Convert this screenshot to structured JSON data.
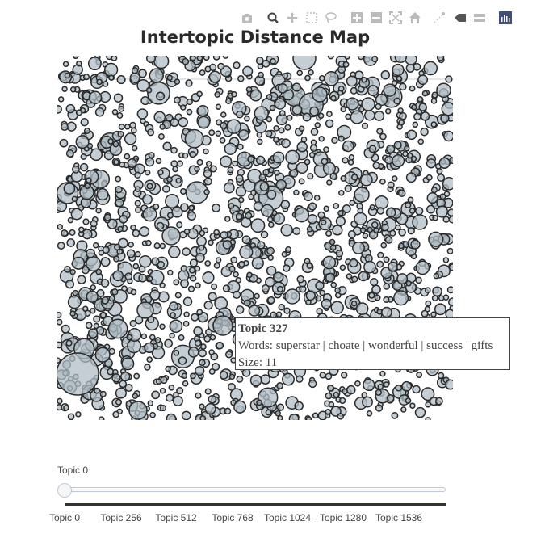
{
  "modebar": {
    "buttons": [
      {
        "name": "camera-icon"
      },
      {
        "name": "zoom-icon"
      },
      {
        "name": "pan-icon"
      },
      {
        "name": "box-select-icon"
      },
      {
        "name": "lasso-select-icon"
      },
      {
        "name": "zoom-in-icon"
      },
      {
        "name": "zoom-out-icon"
      },
      {
        "name": "autoscale-icon"
      },
      {
        "name": "reset-axes-icon"
      },
      {
        "name": "spike-lines-icon"
      },
      {
        "name": "hover-closest-icon"
      },
      {
        "name": "hover-compare-icon"
      },
      {
        "name": "plotly-logo-icon"
      }
    ]
  },
  "chart_data": {
    "type": "scatter",
    "title": "Intertopic Distance Map",
    "marker_fill": "#b0bec5",
    "marker_stroke": "#2a2a2a",
    "points_note_count": 1700,
    "tooltip": {
      "title": "Topic 327",
      "words": "Words: superstar | choate | wonderful | success | gifts",
      "size": "Size: 11"
    },
    "slider": {
      "current_label": "Topic 0",
      "ticks": [
        "Topic 0",
        "Topic 256",
        "Topic 512",
        "Topic 768",
        "Topic 1024",
        "Topic 1280",
        "Topic 1536"
      ]
    }
  }
}
